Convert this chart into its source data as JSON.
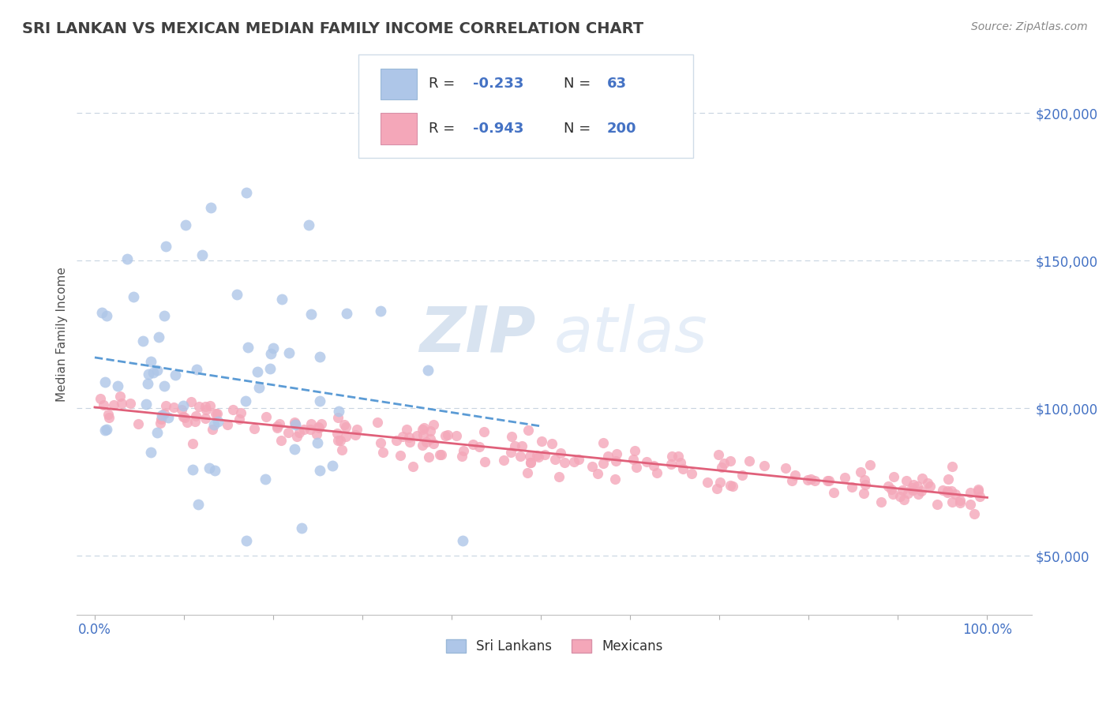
{
  "title": "SRI LANKAN VS MEXICAN MEDIAN FAMILY INCOME CORRELATION CHART",
  "source": "Source: ZipAtlas.com",
  "ylabel": "Median Family Income",
  "sri_lankan": {
    "R": -0.233,
    "N": 63,
    "color": "#aec6e8",
    "line_color": "#5b9bd5",
    "label": "Sri Lankans"
  },
  "mexican": {
    "R": -0.943,
    "N": 200,
    "color": "#f4a7b9",
    "line_color": "#e0607a",
    "label": "Mexicans"
  },
  "y_ticks": [
    50000,
    100000,
    150000,
    200000
  ],
  "y_tick_labels": [
    "$50,000",
    "$100,000",
    "$150,000",
    "$200,000"
  ],
  "x_ticks": [
    0.0,
    0.1,
    0.2,
    0.3,
    0.4,
    0.5,
    0.6,
    0.7,
    0.8,
    0.9,
    1.0
  ],
  "ylim": [
    30000,
    220000
  ],
  "xlim": [
    -0.02,
    1.05
  ],
  "watermark_ZIP": "ZIP",
  "watermark_atlas": "atlas",
  "background_color": "#ffffff",
  "grid_color": "#c8d4e0",
  "title_color": "#404040",
  "title_fontsize": 14,
  "axis_label_color": "#505050",
  "tick_color": "#4472c4",
  "legend_blue": "#4472c4",
  "legend_black": "#303030"
}
